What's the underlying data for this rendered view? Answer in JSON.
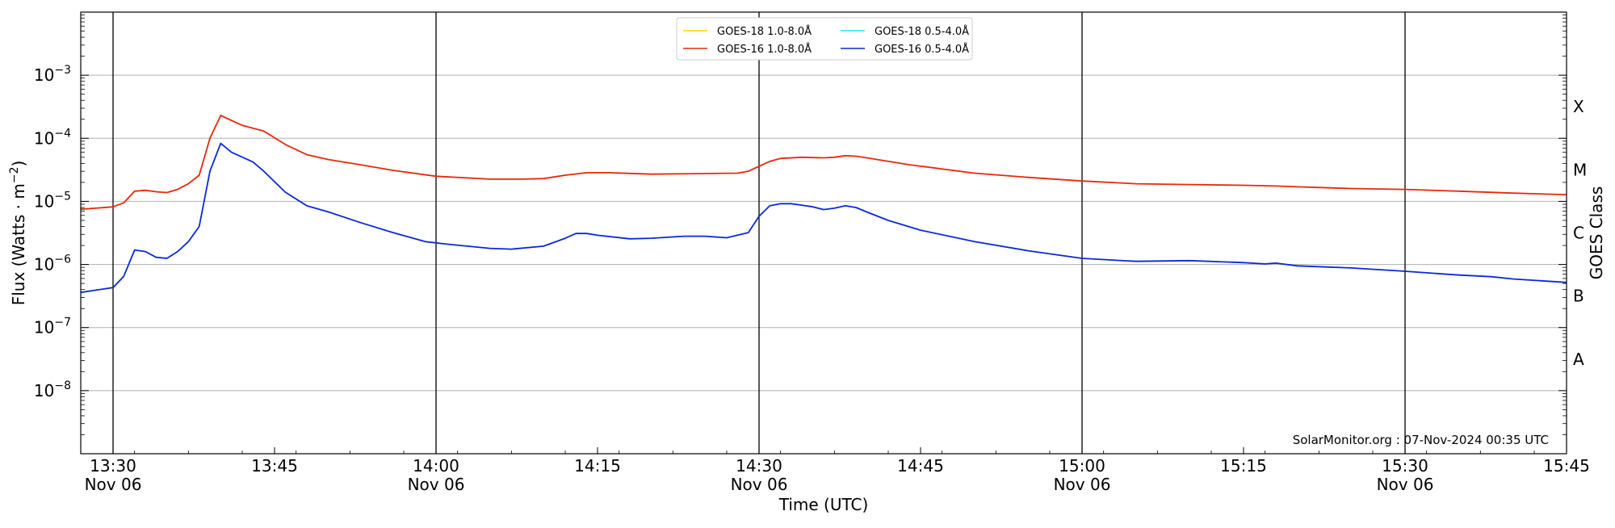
{
  "chart_data": {
    "type": "line",
    "xlabel": "Time (UTC)",
    "ylabel": "Flux (Watts · m",
    "ylabel_sup": "−2",
    "ylabel_close": ")",
    "right_label": "GOES Class",
    "yscale": "log",
    "ylim": [
      1e-09,
      0.01
    ],
    "xlim": [
      "13:27",
      "15:45"
    ],
    "y_ticks": [
      {
        "value": 1e-08,
        "base": "10",
        "exp": "−8"
      },
      {
        "value": 1e-07,
        "base": "10",
        "exp": "−7"
      },
      {
        "value": 1e-06,
        "base": "10",
        "exp": "−6"
      },
      {
        "value": 1e-05,
        "base": "10",
        "exp": "−5"
      },
      {
        "value": 0.0001,
        "base": "10",
        "exp": "−4"
      },
      {
        "value": 0.001,
        "base": "10",
        "exp": "−3"
      }
    ],
    "x_ticks": [
      {
        "time": "13:30",
        "label": "13:30",
        "sub": "Nov 06",
        "major": true
      },
      {
        "time": "13:45",
        "label": "13:45",
        "sub": "",
        "major": false
      },
      {
        "time": "14:00",
        "label": "14:00",
        "sub": "Nov 06",
        "major": true
      },
      {
        "time": "14:15",
        "label": "14:15",
        "sub": "",
        "major": false
      },
      {
        "time": "14:30",
        "label": "14:30",
        "sub": "Nov 06",
        "major": true
      },
      {
        "time": "14:45",
        "label": "14:45",
        "sub": "",
        "major": false
      },
      {
        "time": "15:00",
        "label": "15:00",
        "sub": "Nov 06",
        "major": true
      },
      {
        "time": "15:15",
        "label": "15:15",
        "sub": "",
        "major": false
      },
      {
        "time": "15:30",
        "label": "15:30",
        "sub": "Nov 06",
        "major": true
      },
      {
        "time": "15:45",
        "label": "15:45",
        "sub": "",
        "major": false
      }
    ],
    "goes_classes": [
      {
        "label": "X",
        "value": 0.000316
      },
      {
        "label": "M",
        "value": 3.16e-05
      },
      {
        "label": "C",
        "value": 3.16e-06
      },
      {
        "label": "B",
        "value": 3.16e-07
      },
      {
        "label": "A",
        "value": 3.16e-08
      }
    ],
    "grid": true,
    "legend_position": "top-center",
    "credit": "SolarMonitor.org : 07-Nov-2024 00:35 UTC",
    "series": [
      {
        "name": "GOES-18 1.0-8.0Å",
        "color": "#ffd700",
        "x": [],
        "values": []
      },
      {
        "name": "GOES-16 1.0-8.0Å",
        "color": "#e8280a",
        "x": [
          "13:27",
          "13:30",
          "13:31",
          "13:32",
          "13:33",
          "13:34",
          "13:35",
          "13:36",
          "13:37",
          "13:38",
          "13:39",
          "13:40",
          "13:42",
          "13:44",
          "13:46",
          "13:48",
          "13:50",
          "13:53",
          "13:56",
          "14:00",
          "14:05",
          "14:08",
          "14:10",
          "14:12",
          "14:14",
          "14:16",
          "14:20",
          "14:24",
          "14:28",
          "14:29",
          "14:30",
          "14:31",
          "14:32",
          "14:34",
          "14:36",
          "14:37",
          "14:38",
          "14:39",
          "14:40",
          "14:44",
          "14:50",
          "14:55",
          "15:00",
          "15:05",
          "15:10",
          "15:15",
          "15:18",
          "15:20",
          "15:25",
          "15:30",
          "15:35",
          "15:40",
          "15:45"
        ],
        "values": [
          7.5e-06,
          8.2e-06,
          9.5e-06,
          1.45e-05,
          1.5e-05,
          1.42e-05,
          1.38e-05,
          1.55e-05,
          1.9e-05,
          2.6e-05,
          0.0001,
          0.00023,
          0.00016,
          0.00013,
          8e-05,
          5.5e-05,
          4.6e-05,
          3.8e-05,
          3.1e-05,
          2.5e-05,
          2.25e-05,
          2.25e-05,
          2.3e-05,
          2.6e-05,
          2.85e-05,
          2.85e-05,
          2.7e-05,
          2.75e-05,
          2.8e-05,
          3e-05,
          3.6e-05,
          4.3e-05,
          4.8e-05,
          5e-05,
          4.9e-05,
          5e-05,
          5.3e-05,
          5.2e-05,
          4.9e-05,
          3.8e-05,
          2.8e-05,
          2.4e-05,
          2.1e-05,
          1.9e-05,
          1.85e-05,
          1.8e-05,
          1.75e-05,
          1.7e-05,
          1.6e-05,
          1.55e-05,
          1.45e-05,
          1.35e-05,
          1.28e-05
        ]
      },
      {
        "name": "GOES-18 0.5-4.0Å",
        "color": "#22e4f2",
        "x": [],
        "values": []
      },
      {
        "name": "GOES-16 0.5-4.0Å",
        "color": "#0a28d8",
        "x": [
          "13:27",
          "13:30",
          "13:31",
          "13:32",
          "13:33",
          "13:34",
          "13:35",
          "13:36",
          "13:37",
          "13:38",
          "13:39",
          "13:40",
          "13:41",
          "13:43",
          "13:44",
          "13:46",
          "13:48",
          "13:50",
          "13:53",
          "13:56",
          "13:59",
          "14:01",
          "14:05",
          "14:07",
          "14:10",
          "14:12",
          "14:13",
          "14:14",
          "14:15",
          "14:18",
          "14:20",
          "14:23",
          "14:25",
          "14:27",
          "14:29",
          "14:30",
          "14:31",
          "14:32",
          "14:33",
          "14:35",
          "14:36",
          "14:37",
          "14:38",
          "14:39",
          "14:40",
          "14:42",
          "14:45",
          "14:50",
          "14:55",
          "15:00",
          "15:05",
          "15:10",
          "15:15",
          "15:17",
          "15:18",
          "15:20",
          "15:25",
          "15:30",
          "15:35",
          "15:38",
          "15:40",
          "15:45"
        ],
        "values": [
          3.6e-07,
          4.3e-07,
          6.5e-07,
          1.7e-06,
          1.6e-06,
          1.3e-06,
          1.25e-06,
          1.6e-06,
          2.3e-06,
          4e-06,
          3e-05,
          8.3e-05,
          6e-05,
          4.2e-05,
          3e-05,
          1.4e-05,
          8.5e-06,
          6.8e-06,
          4.6e-06,
          3.2e-06,
          2.3e-06,
          2.1e-06,
          1.8e-06,
          1.75e-06,
          1.95e-06,
          2.6e-06,
          3.1e-06,
          3.1e-06,
          2.9e-06,
          2.55e-06,
          2.6e-06,
          2.8e-06,
          2.8e-06,
          2.65e-06,
          3.2e-06,
          5.8e-06,
          8.5e-06,
          9.2e-06,
          9.2e-06,
          8.2e-06,
          7.4e-06,
          7.8e-06,
          8.5e-06,
          8e-06,
          6.8e-06,
          5e-06,
          3.5e-06,
          2.3e-06,
          1.65e-06,
          1.25e-06,
          1.12e-06,
          1.15e-06,
          1.07e-06,
          1.02e-06,
          1.05e-06,
          9.5e-07,
          8.8e-07,
          7.8e-07,
          6.8e-07,
          6.4e-07,
          5.9e-07,
          5.2e-07
        ]
      }
    ]
  }
}
